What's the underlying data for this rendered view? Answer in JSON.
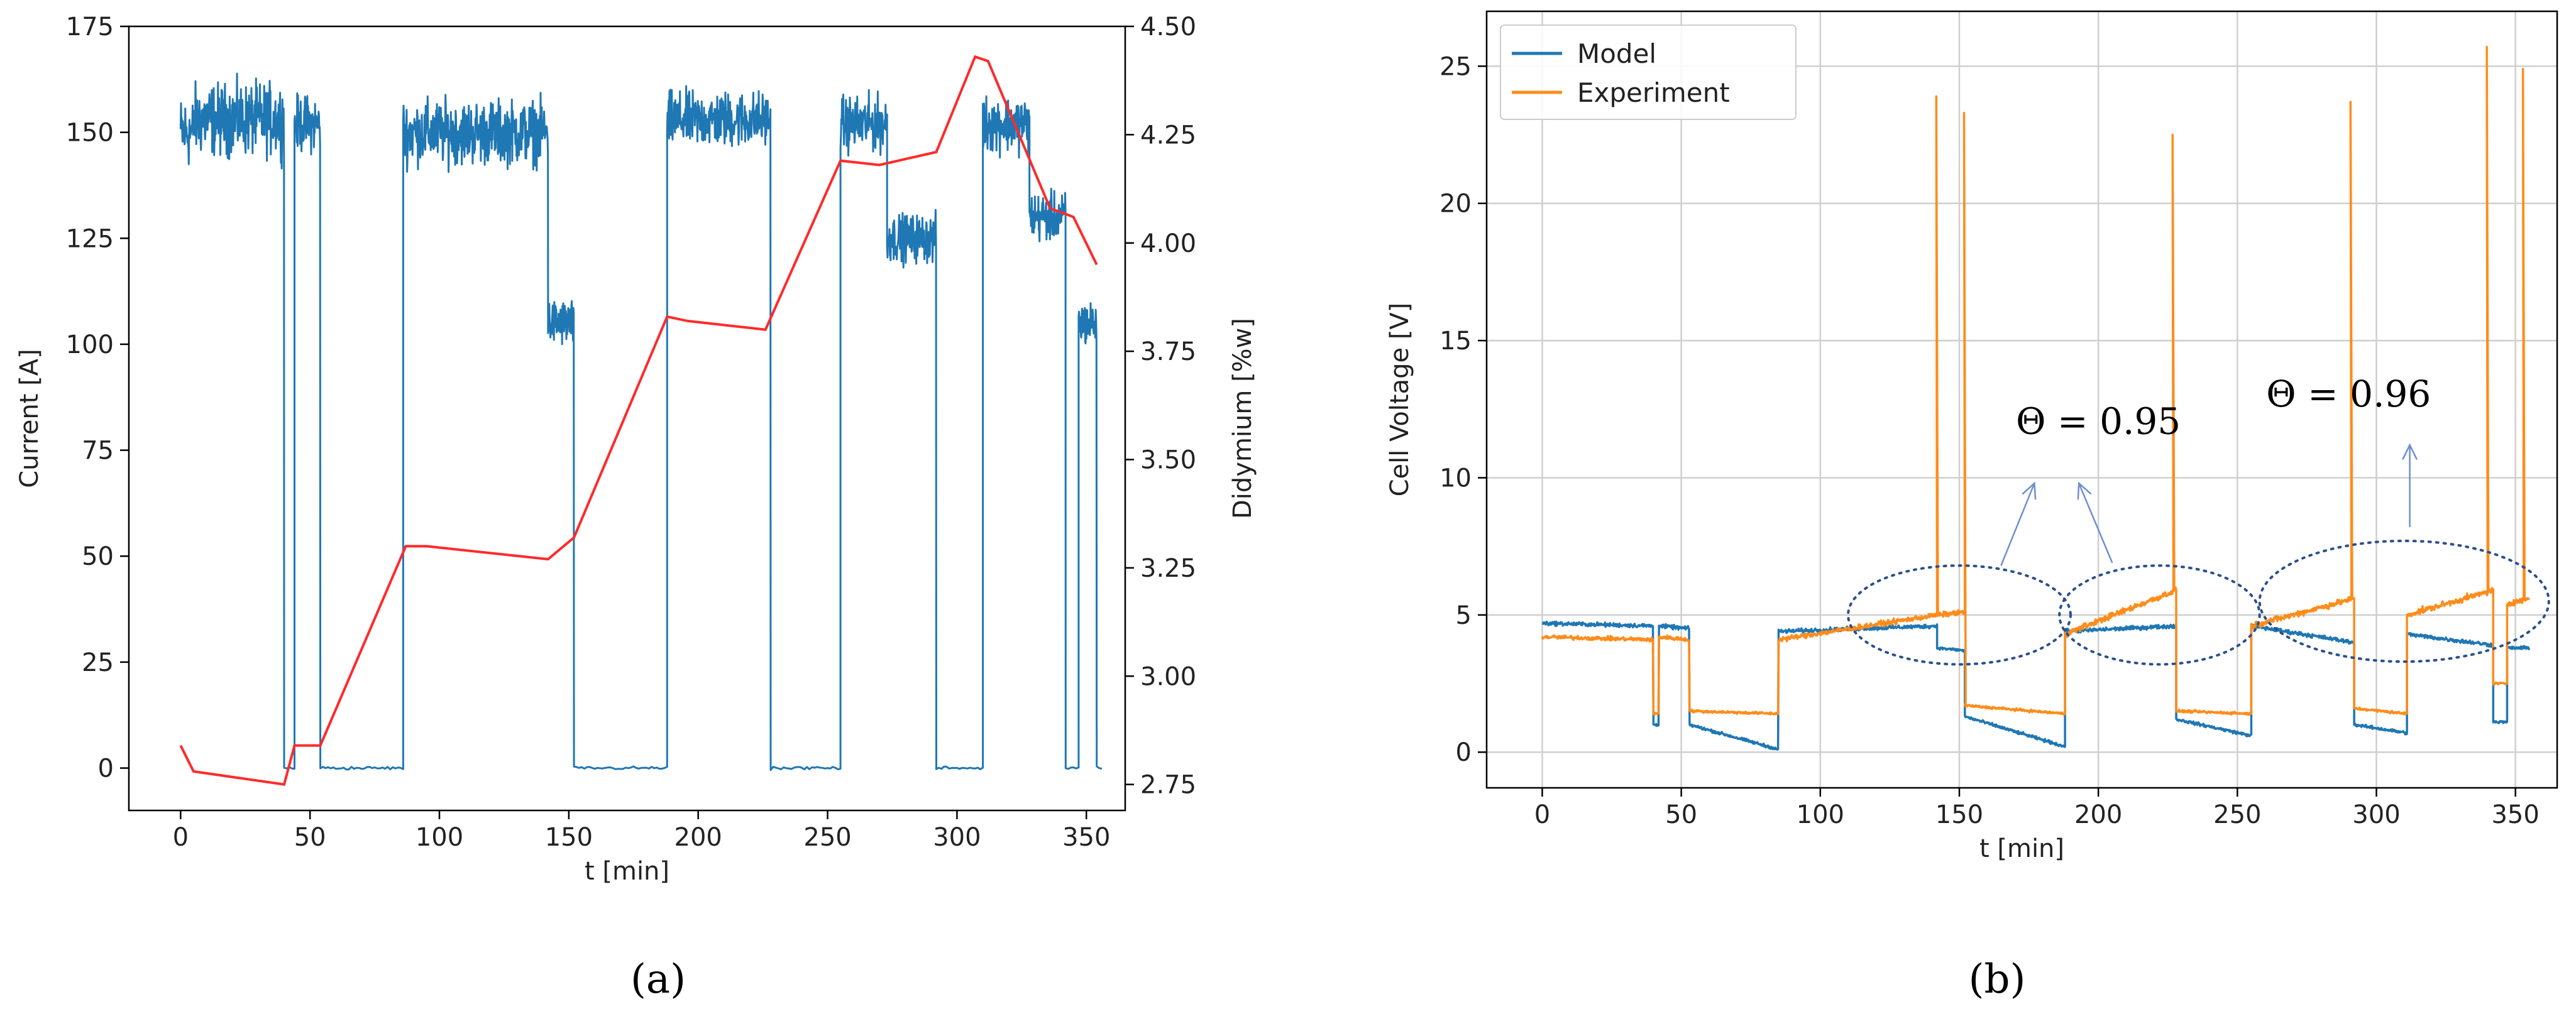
{
  "panel_labels": [
    "(a)",
    "(b)"
  ],
  "chart_data": [
    {
      "type": "line",
      "panel": "a",
      "xlabel": "t [min]",
      "ylabel": "Current [A]",
      "ylabel_right": "Didymium [%w]",
      "xlim": [
        -20,
        365
      ],
      "ylim": [
        -10,
        175
      ],
      "ylim_right": [
        2.69,
        4.5
      ],
      "xticks": [
        0,
        50,
        100,
        150,
        200,
        250,
        300,
        350
      ],
      "yticks": [
        0,
        25,
        50,
        75,
        100,
        125,
        150,
        175
      ],
      "yticks_right": [
        2.75,
        3.0,
        3.25,
        3.5,
        3.75,
        4.0,
        4.25,
        4.5
      ],
      "ytick_labels_right": [
        "2.75",
        "3.00",
        "3.25",
        "3.50",
        "3.75",
        "4.00",
        "4.25",
        "4.50"
      ],
      "grid": false,
      "colors": {
        "current": "#1f77b4",
        "didymium": "#ff2a2a"
      },
      "current_segments": [
        {
          "t0": 0,
          "t1": 5,
          "level": 150,
          "noise": 9
        },
        {
          "t0": 5,
          "t1": 40,
          "level": 153,
          "noise": 9
        },
        {
          "t0": 40,
          "t1": 44,
          "level": 0,
          "noise": 0.4
        },
        {
          "t0": 44,
          "t1": 54,
          "level": 152,
          "noise": 7
        },
        {
          "t0": 54,
          "t1": 86,
          "level": 0,
          "noise": 0.4
        },
        {
          "t0": 86,
          "t1": 142,
          "level": 150,
          "noise": 8
        },
        {
          "t0": 142,
          "t1": 152,
          "level": 105,
          "noise": 6
        },
        {
          "t0": 152,
          "t1": 188,
          "level": 0,
          "noise": 0.4
        },
        {
          "t0": 188,
          "t1": 228,
          "level": 153,
          "noise": 7
        },
        {
          "t0": 228,
          "t1": 255,
          "level": 0,
          "noise": 0.4
        },
        {
          "t0": 255,
          "t1": 273,
          "level": 152,
          "noise": 7
        },
        {
          "t0": 273,
          "t1": 292,
          "level": 125,
          "noise": 6
        },
        {
          "t0": 292,
          "t1": 310,
          "level": 0,
          "noise": 0.4
        },
        {
          "t0": 310,
          "t1": 328,
          "level": 152,
          "noise": 7
        },
        {
          "t0": 328,
          "t1": 342,
          "level": 130,
          "noise": 6
        },
        {
          "t0": 342,
          "t1": 347,
          "level": 0,
          "noise": 0.4
        },
        {
          "t0": 347,
          "t1": 354,
          "level": 105,
          "noise": 6
        },
        {
          "t0": 354,
          "t1": 356,
          "level": 0,
          "noise": 0.4
        }
      ],
      "didymium": {
        "x": [
          0,
          5,
          40,
          44,
          54,
          87,
          95,
          142,
          152,
          188,
          196,
          226,
          255,
          270,
          292,
          307,
          312,
          336,
          345,
          354
        ],
        "y": [
          2.84,
          2.78,
          2.75,
          2.84,
          2.84,
          3.3,
          3.3,
          3.27,
          3.32,
          3.83,
          3.82,
          3.8,
          4.19,
          4.18,
          4.21,
          4.43,
          4.42,
          4.08,
          4.06,
          3.95
        ]
      }
    },
    {
      "type": "line",
      "panel": "b",
      "xlabel": "t [min]",
      "ylabel": "Cell Voltage [V]",
      "xlim": [
        -20,
        365
      ],
      "ylim": [
        -1.3,
        27
      ],
      "xticks": [
        0,
        50,
        100,
        150,
        200,
        250,
        300,
        350
      ],
      "yticks": [
        0,
        5,
        10,
        15,
        20,
        25
      ],
      "grid": true,
      "legend_position": "top-left",
      "series": [
        {
          "name": "Model",
          "color": "#1f77b4"
        },
        {
          "name": "Experiment",
          "color": "#ff8c1a"
        }
      ],
      "model_segments": [
        {
          "t0": 0,
          "t1": 40,
          "start": 4.7,
          "end": 4.6,
          "noise": 0.08
        },
        {
          "t0": 40,
          "t1": 42,
          "start": 1.0,
          "end": 1.0,
          "noise": 0.05
        },
        {
          "t0": 42,
          "t1": 53,
          "start": 4.6,
          "end": 4.5,
          "noise": 0.08
        },
        {
          "t0": 53,
          "t1": 85,
          "start": 1.0,
          "end": 0.1,
          "noise": 0.06
        },
        {
          "t0": 85,
          "t1": 142,
          "start": 4.4,
          "end": 4.6,
          "noise": 0.08
        },
        {
          "t0": 142,
          "t1": 152,
          "start": 3.8,
          "end": 3.7,
          "noise": 0.05
        },
        {
          "t0": 152,
          "t1": 188,
          "start": 1.3,
          "end": 0.2,
          "noise": 0.06
        },
        {
          "t0": 188,
          "t1": 228,
          "start": 4.4,
          "end": 4.6,
          "noise": 0.08
        },
        {
          "t0": 228,
          "t1": 255,
          "start": 1.2,
          "end": 0.6,
          "noise": 0.06
        },
        {
          "t0": 255,
          "t1": 292,
          "start": 4.6,
          "end": 4.0,
          "noise": 0.08
        },
        {
          "t0": 292,
          "t1": 311,
          "start": 1.0,
          "end": 0.7,
          "noise": 0.06
        },
        {
          "t0": 311,
          "t1": 342,
          "start": 4.3,
          "end": 3.9,
          "noise": 0.08
        },
        {
          "t0": 342,
          "t1": 347,
          "start": 1.1,
          "end": 1.1,
          "noise": 0.05
        },
        {
          "t0": 347,
          "t1": 355,
          "start": 3.8,
          "end": 3.8,
          "noise": 0.06
        }
      ],
      "experiment_segments": [
        {
          "t0": 0,
          "t1": 40,
          "start": 4.2,
          "end": 4.1,
          "noise": 0.08
        },
        {
          "t0": 40,
          "t1": 42,
          "start": 1.4,
          "end": 1.4,
          "noise": 0.05
        },
        {
          "t0": 42,
          "t1": 53,
          "start": 4.2,
          "end": 4.1,
          "noise": 0.08
        },
        {
          "t0": 53,
          "t1": 85,
          "start": 1.5,
          "end": 1.4,
          "noise": 0.05
        },
        {
          "t0": 85,
          "t1": 142,
          "start": 4.1,
          "end": 5.0,
          "noise": 0.1
        },
        {
          "t0": 142,
          "t1": 152,
          "start": 5.0,
          "end": 5.1,
          "noise": 0.1
        },
        {
          "t0": 152,
          "t1": 188,
          "start": 1.7,
          "end": 1.4,
          "noise": 0.05
        },
        {
          "t0": 188,
          "t1": 228,
          "start": 4.3,
          "end": 5.9,
          "noise": 0.12
        },
        {
          "t0": 228,
          "t1": 255,
          "start": 1.5,
          "end": 1.4,
          "noise": 0.05
        },
        {
          "t0": 255,
          "t1": 292,
          "start": 4.6,
          "end": 5.6,
          "noise": 0.12
        },
        {
          "t0": 292,
          "t1": 311,
          "start": 1.6,
          "end": 1.4,
          "noise": 0.05
        },
        {
          "t0": 311,
          "t1": 342,
          "start": 5.0,
          "end": 5.9,
          "noise": 0.12
        },
        {
          "t0": 342,
          "t1": 347,
          "start": 2.5,
          "end": 2.5,
          "noise": 0.05
        },
        {
          "t0": 347,
          "t1": 355,
          "start": 5.4,
          "end": 5.6,
          "noise": 0.1
        }
      ],
      "experiment_spikes": [
        {
          "t": 142,
          "v": 23.9
        },
        {
          "t": 152,
          "v": 23.3
        },
        {
          "t": 227,
          "v": 22.5
        },
        {
          "t": 291,
          "v": 23.7
        },
        {
          "t": 340,
          "v": 25.7
        },
        {
          "t": 353,
          "v": 24.9
        }
      ],
      "annotations": [
        {
          "text": "Θ = 0.95",
          "x": 200,
          "y": 11.6
        },
        {
          "text": "Θ = 0.96",
          "x": 290,
          "y": 12.6
        }
      ],
      "highlight_regions": [
        {
          "cx": 150,
          "cy": 5,
          "rx": 40,
          "ry": 1.8
        },
        {
          "cx": 222,
          "cy": 5,
          "rx": 36,
          "ry": 1.8
        },
        {
          "cx": 310,
          "cy": 5.5,
          "rx": 52,
          "ry": 2.2
        }
      ]
    }
  ]
}
